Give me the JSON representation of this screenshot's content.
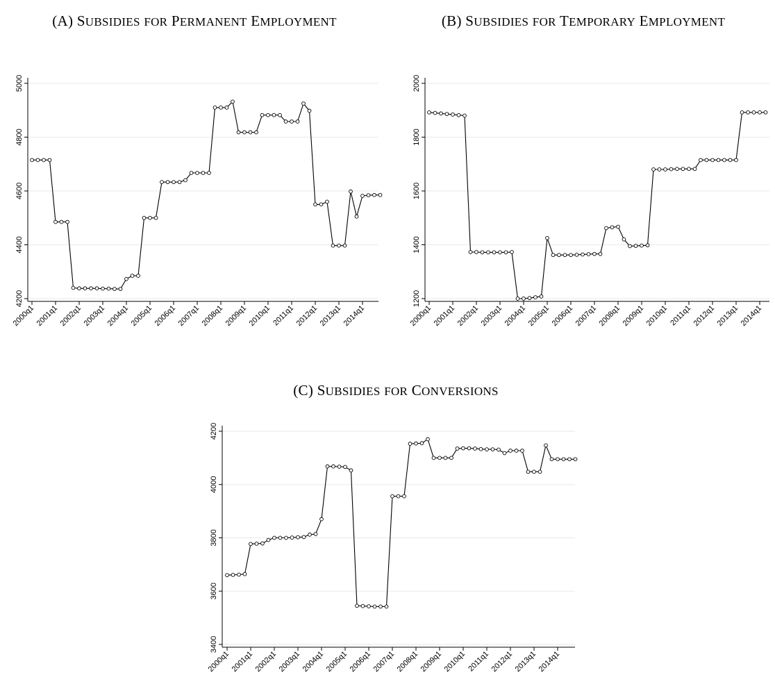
{
  "chart_data": [
    {
      "type": "line",
      "title": "(A) Subsidies for Permanent Employment",
      "xlabel": "",
      "ylabel": "",
      "ylim": [
        4200,
        5000
      ],
      "yticks": [
        4200,
        4400,
        4600,
        4800,
        5000
      ],
      "x_tick_labels": [
        "2000q1",
        "2001q1",
        "2002q1",
        "2003q1",
        "2004q1",
        "2005q1",
        "2006q1",
        "2007q1",
        "2008q1",
        "2009q1",
        "2010q1",
        "2011q1",
        "2012q1",
        "2013q1",
        "2014q1"
      ],
      "x_start": "2000q1",
      "grid": true,
      "values": [
        4715,
        4715,
        4715,
        4715,
        4485,
        4485,
        4485,
        4240,
        4238,
        4238,
        4238,
        4238,
        4237,
        4237,
        4236,
        4236,
        4273,
        4285,
        4285,
        4500,
        4500,
        4500,
        4633,
        4633,
        4633,
        4633,
        4640,
        4667,
        4667,
        4667,
        4667,
        4910,
        4910,
        4910,
        4932,
        4818,
        4818,
        4818,
        4818,
        4882,
        4882,
        4882,
        4882,
        4858,
        4858,
        4858,
        4925,
        4898,
        4550,
        4550,
        4560,
        4397,
        4397,
        4397,
        4598,
        4505,
        4582,
        4584,
        4585,
        4585
      ]
    },
    {
      "type": "line",
      "title": "(B) Subsidies for Temporary Employment",
      "xlabel": "",
      "ylabel": "",
      "ylim": [
        1200,
        2000
      ],
      "yticks": [
        1200,
        1400,
        1600,
        1800,
        2000
      ],
      "x_tick_labels": [
        "2000q1",
        "2001q1",
        "2002q1",
        "2003q1",
        "2004q1",
        "2005q1",
        "2006q1",
        "2007q1",
        "2008q1",
        "2009q1",
        "2010q1",
        "2011q1",
        "2012q1",
        "2013q1",
        "2014q1"
      ],
      "x_start": "2000q1",
      "grid": true,
      "values": [
        1892,
        1890,
        1888,
        1886,
        1884,
        1882,
        1880,
        1373,
        1373,
        1372,
        1372,
        1372,
        1372,
        1372,
        1373,
        1200,
        1200,
        1202,
        1205,
        1208,
        1425,
        1362,
        1362,
        1362,
        1362,
        1363,
        1364,
        1365,
        1366,
        1366,
        1462,
        1465,
        1467,
        1420,
        1395,
        1396,
        1397,
        1398,
        1680,
        1680,
        1680,
        1681,
        1682,
        1682,
        1682,
        1682,
        1715,
        1715,
        1715,
        1715,
        1715,
        1715,
        1715,
        1892,
        1892,
        1892,
        1892,
        1892
      ]
    },
    {
      "type": "line",
      "title": "(C) Subsidies for Conversions",
      "xlabel": "",
      "ylabel": "",
      "ylim": [
        3400,
        4200
      ],
      "yticks": [
        3400,
        3600,
        3800,
        4000,
        4200
      ],
      "x_tick_labels": [
        "2000q1",
        "2001q1",
        "2002q1",
        "2003q1",
        "2004q1",
        "2005q1",
        "2006q1",
        "2007q1",
        "2008q1",
        "2009q1",
        "2010q1",
        "2011q1",
        "2012q1",
        "2013q1",
        "2014q1"
      ],
      "x_start": "2000q1",
      "grid": true,
      "values": [
        3660,
        3661,
        3662,
        3664,
        3777,
        3778,
        3779,
        3792,
        3800,
        3800,
        3800,
        3801,
        3802,
        3803,
        3812,
        3814,
        3870,
        4068,
        4068,
        4067,
        4066,
        4053,
        3545,
        3544,
        3543,
        3542,
        3542,
        3542,
        3956,
        3956,
        3956,
        4153,
        4154,
        4155,
        4170,
        4100,
        4100,
        4100,
        4100,
        4135,
        4136,
        4136,
        4135,
        4133,
        4132,
        4132,
        4131,
        4118,
        4127,
        4127,
        4127,
        4048,
        4048,
        4048,
        4147,
        4095,
        4095,
        4095,
        4095,
        4095
      ]
    }
  ]
}
